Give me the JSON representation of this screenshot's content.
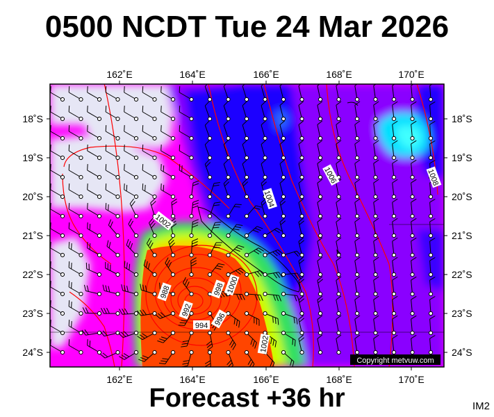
{
  "header": {
    "title": "0500 NCDT Tue 24 Mar 2026"
  },
  "footer": {
    "label": "Forecast +36 hr",
    "image_code": "IM2"
  },
  "map": {
    "lon_ticks": [
      "162˚E",
      "164˚E",
      "166˚E",
      "168˚E",
      "170˚E"
    ],
    "lat_ticks": [
      "18˚S",
      "19˚S",
      "20˚S",
      "21˚S",
      "22˚S",
      "23˚S",
      "24˚S"
    ],
    "isobar_labels": [
      "1006",
      "1004",
      "1002",
      "1008",
      "1000",
      "998",
      "996",
      "994",
      "992",
      "988",
      "1002"
    ],
    "copyright": "Copyright metvuw.com",
    "colors": {
      "background_calm": "#e6e6f5",
      "magenta": "#ff00ff",
      "purple": "#8a00ff",
      "blue": "#0000ff",
      "cyan": "#00ffff",
      "green": "#40ff40",
      "yellow": "#ffff00",
      "orange": "#ff4500",
      "isobar": "#ff0000"
    }
  }
}
